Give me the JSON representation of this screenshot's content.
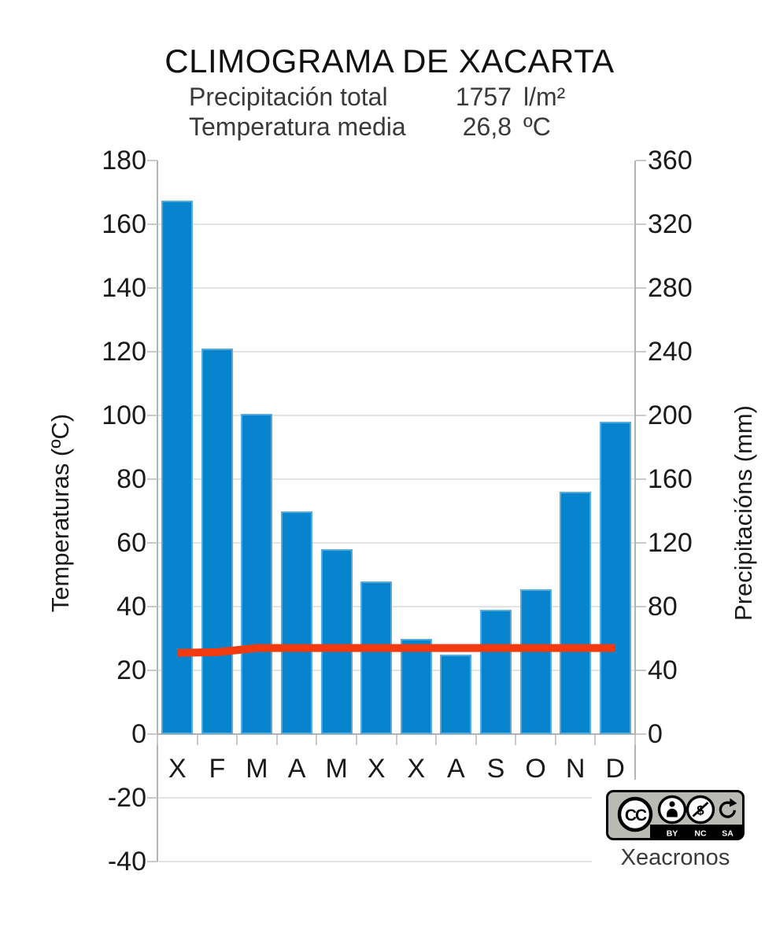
{
  "title": "CLIMOGRAMA DE XACARTA",
  "summary": {
    "precipitation_label": "Precipitación total",
    "precipitation_value": "1757",
    "precipitation_unit": "l/m²",
    "temperature_label": "Temperatura media",
    "temperature_value": "26,8",
    "temperature_unit": "ºC"
  },
  "chart_data": {
    "type": "bar",
    "title": "CLIMOGRAMA DE XACARTA",
    "categories": [
      "X",
      "F",
      "M",
      "A",
      "M",
      "X",
      "X",
      "A",
      "S",
      "O",
      "N",
      "D"
    ],
    "series": [
      {
        "name": "Precipitacións (mm)",
        "type": "bar",
        "axis": "right",
        "unit": "mm",
        "values": [
          335,
          242,
          201,
          140,
          116,
          96,
          60,
          50,
          78,
          91,
          152,
          196
        ]
      },
      {
        "name": "Temperaturas (ºC)",
        "type": "line",
        "axis": "left",
        "unit": "ºC",
        "values": [
          25.5,
          25.7,
          27.0,
          27.0,
          27.0,
          27.0,
          27.0,
          27.0,
          27.0,
          27.0,
          27.0,
          27.0
        ]
      }
    ],
    "left_axis": {
      "label": "Temperaturas (ºC)",
      "min": -40,
      "max": 180,
      "step": 20
    },
    "right_axis": {
      "label": "Precipitacións (mm)",
      "min": 0,
      "max": 360,
      "step": 40
    },
    "grid": true,
    "legend": "none"
  },
  "credit": {
    "license": "CC BY-NC-SA",
    "badge": {
      "cc": "CC",
      "by": "BY",
      "nc": "NC",
      "sa": "SA"
    },
    "author": "Xeacronos"
  },
  "colors": {
    "bar": "#0685ce",
    "bar_border": "#55abdc",
    "line": "#f23a10",
    "grid": "#e3e3e3",
    "axis": "#b3b3b3",
    "tick": "#c9c9c9",
    "title_text": "#111111",
    "subtitle_text": "#3a3a3a",
    "badge_bg": "#b9bab3"
  }
}
